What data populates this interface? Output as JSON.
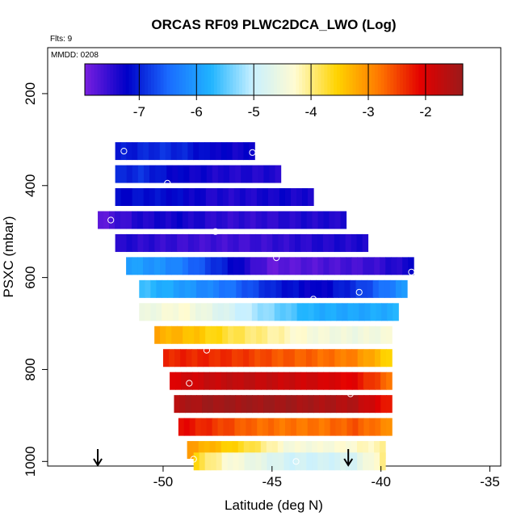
{
  "chart_data": {
    "type": "heatmap",
    "title": "ORCAS RF09 PLWC2DCA_LWO (Log)",
    "flights_note": "Flts: 9",
    "date_note": "MMDD: 0208",
    "xlabel": "Latitude (deg N)",
    "ylabel": "PSXC (mbar)",
    "xlim": [
      -55.3,
      -34.5
    ],
    "ylim": [
      1010,
      100
    ],
    "x_ticks": [
      -50,
      -45,
      -40,
      -35
    ],
    "y_ticks": [
      200,
      400,
      600,
      800,
      1000
    ],
    "grid": false,
    "colorbar": {
      "range": [
        -7.95,
        -1.35
      ],
      "ticks": [
        -7,
        -6,
        -5,
        -4,
        -3,
        -2
      ],
      "colors": [
        "#7a1fe0",
        "#0000c8",
        "#1a6cff",
        "#20b4ff",
        "#c8f0ff",
        "#fffbd2",
        "#ffd400",
        "#ff7800",
        "#e40000",
        "#9b1a1a"
      ]
    },
    "layers": [
      {
        "pressure": 325,
        "lat_start": -52.2,
        "lat_end": -45.8,
        "values": [
          -7.1,
          -7.0,
          -6.9,
          -7.0,
          -7.2,
          -7.3,
          -7.3
        ]
      },
      {
        "pressure": 375,
        "lat_start": -52.2,
        "lat_end": -44.6,
        "values": [
          -7.0,
          -6.9,
          -7.2,
          -7.3,
          -7.4,
          -7.4,
          -7.4
        ]
      },
      {
        "pressure": 425,
        "lat_start": -52.2,
        "lat_end": -43.1,
        "values": [
          -7.2,
          -7.1,
          -7.2,
          -7.4,
          -7.4,
          -7.3,
          -7.4
        ]
      },
      {
        "pressure": 475,
        "lat_start": -53.0,
        "lat_end": -41.6,
        "values": [
          -7.8,
          -7.4,
          -7.3,
          -7.5,
          -7.5,
          -7.4,
          -7.4
        ]
      },
      {
        "pressure": 525,
        "lat_start": -52.2,
        "lat_end": -40.6,
        "values": [
          -7.4,
          -7.5,
          -7.6,
          -7.6,
          -7.5,
          -7.4,
          -7.4
        ]
      },
      {
        "pressure": 575,
        "lat_start": -51.7,
        "lat_end": -38.5,
        "values": [
          -5.9,
          -6.2,
          -7.0,
          -7.8,
          -7.7,
          -7.6,
          -7.3
        ]
      },
      {
        "pressure": 625,
        "lat_start": -51.1,
        "lat_end": -38.8,
        "values": [
          -5.6,
          -6.0,
          -6.4,
          -7.0,
          -7.3,
          -6.8,
          -6.0
        ]
      },
      {
        "pressure": 675,
        "lat_start": -51.1,
        "lat_end": -39.2,
        "values": [
          -4.6,
          -4.3,
          -4.8,
          -5.3,
          -5.8,
          -5.9,
          -5.8
        ]
      },
      {
        "pressure": 725,
        "lat_start": -50.4,
        "lat_end": -39.5,
        "values": [
          -3.2,
          -3.4,
          -3.8,
          -4.1,
          -4.4,
          -4.5,
          -4.4
        ]
      },
      {
        "pressure": 775,
        "lat_start": -50.0,
        "lat_end": -39.5,
        "values": [
          -2.3,
          -2.3,
          -2.4,
          -2.6,
          -2.7,
          -2.9,
          -3.6
        ]
      },
      {
        "pressure": 825,
        "lat_start": -49.7,
        "lat_end": -39.5,
        "values": [
          -2.0,
          -1.8,
          -1.7,
          -1.8,
          -1.9,
          -2.1,
          -2.8
        ]
      },
      {
        "pressure": 875,
        "lat_start": -49.5,
        "lat_end": -39.5,
        "values": [
          -1.6,
          -1.4,
          -1.4,
          -1.4,
          -1.5,
          -1.6,
          -2.3
        ]
      },
      {
        "pressure": 925,
        "lat_start": -49.3,
        "lat_end": -39.5,
        "values": [
          -2.1,
          -2.4,
          -2.7,
          -2.8,
          -2.8,
          -2.6,
          -3.0
        ]
      },
      {
        "pressure": 975,
        "lat_start": -48.9,
        "lat_end": -39.8,
        "values": [
          -3.1,
          -3.4,
          -3.8,
          -4.4,
          -4.4,
          -4.3,
          -4.1
        ]
      },
      {
        "pressure": 1000,
        "lat_start": -48.6,
        "lat_end": -39.8,
        "values": [
          -3.6,
          -4.3,
          -4.6,
          -4.9,
          -4.9,
          -4.8,
          -4.0
        ]
      }
    ],
    "flight_points": [
      [
        -51.8,
        325
      ],
      [
        -45.9,
        328
      ],
      [
        -49.8,
        395
      ],
      [
        -52.4,
        475
      ],
      [
        -47.6,
        500
      ],
      [
        -44.8,
        557
      ],
      [
        -38.6,
        588
      ],
      [
        -43.1,
        647
      ],
      [
        -41.0,
        632
      ],
      [
        -48.0,
        758
      ],
      [
        -48.8,
        830
      ],
      [
        -41.4,
        853
      ],
      [
        -48.6,
        995
      ],
      [
        -43.9,
        1000
      ]
    ],
    "arrows_lat": [
      -53.0,
      -41.5
    ]
  }
}
